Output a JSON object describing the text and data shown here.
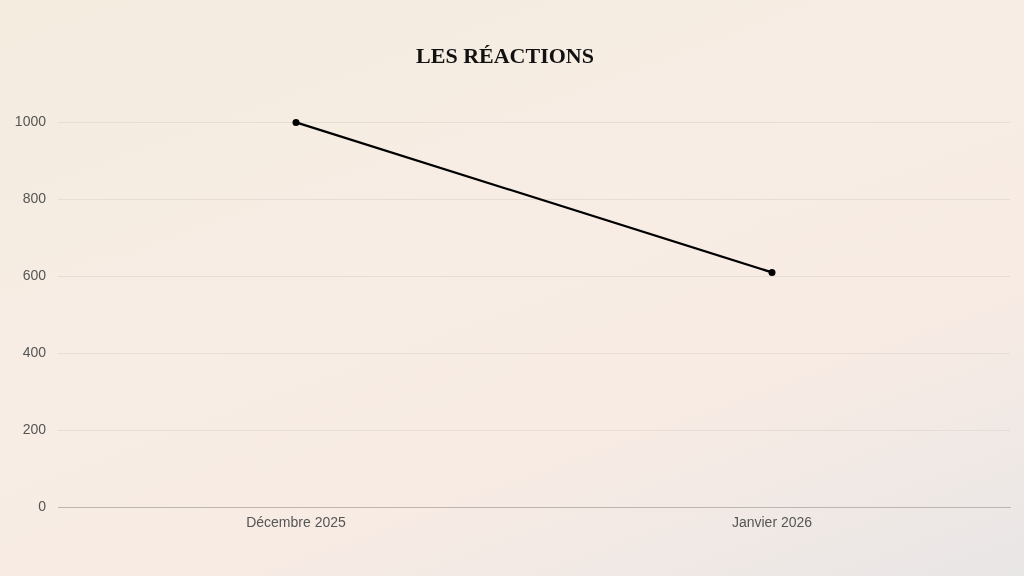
{
  "chart_data": {
    "type": "line",
    "title": "LES RÉACTIONS",
    "categories": [
      "Décembre 2025",
      "Janvier 2026"
    ],
    "series": [
      {
        "color": "#000000",
        "values": [
          1000,
          610
        ]
      }
    ],
    "ylim": [
      0,
      1000
    ],
    "yticks": [
      0,
      200,
      400,
      600,
      800,
      1000
    ],
    "grid": "y",
    "marker": "circle",
    "line_style": "solid"
  }
}
